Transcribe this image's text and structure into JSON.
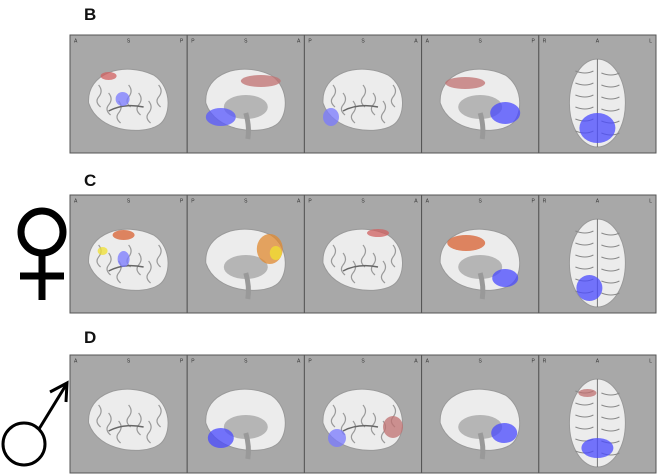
{
  "figure": {
    "rows": [
      {
        "label": "B",
        "panels": [
          {
            "orient": [
              "A",
              "S",
              "P"
            ]
          },
          {
            "orient": [
              "P",
              "S",
              "A"
            ]
          },
          {
            "orient": [
              "P",
              "S",
              "A"
            ]
          },
          {
            "orient": [
              "A",
              "S",
              "P"
            ]
          },
          {
            "orient": [
              "R",
              "A",
              "L"
            ]
          }
        ]
      },
      {
        "label": "C",
        "panels": [
          {
            "orient": [
              "A",
              "S",
              "P"
            ]
          },
          {
            "orient": [
              "P",
              "S",
              "A"
            ]
          },
          {
            "orient": [
              "P",
              "S",
              "A"
            ]
          },
          {
            "orient": [
              "A",
              "S",
              "P"
            ]
          },
          {
            "orient": [
              "R",
              "A",
              "L"
            ]
          }
        ]
      },
      {
        "label": "D",
        "panels": [
          {
            "orient": [
              "A",
              "S",
              "P"
            ]
          },
          {
            "orient": [
              "P",
              "S",
              "A"
            ]
          },
          {
            "orient": [
              "P",
              "S",
              "A"
            ]
          },
          {
            "orient": [
              "A",
              "S",
              "P"
            ]
          },
          {
            "orient": [
              "R",
              "A",
              "L"
            ]
          }
        ]
      }
    ]
  }
}
